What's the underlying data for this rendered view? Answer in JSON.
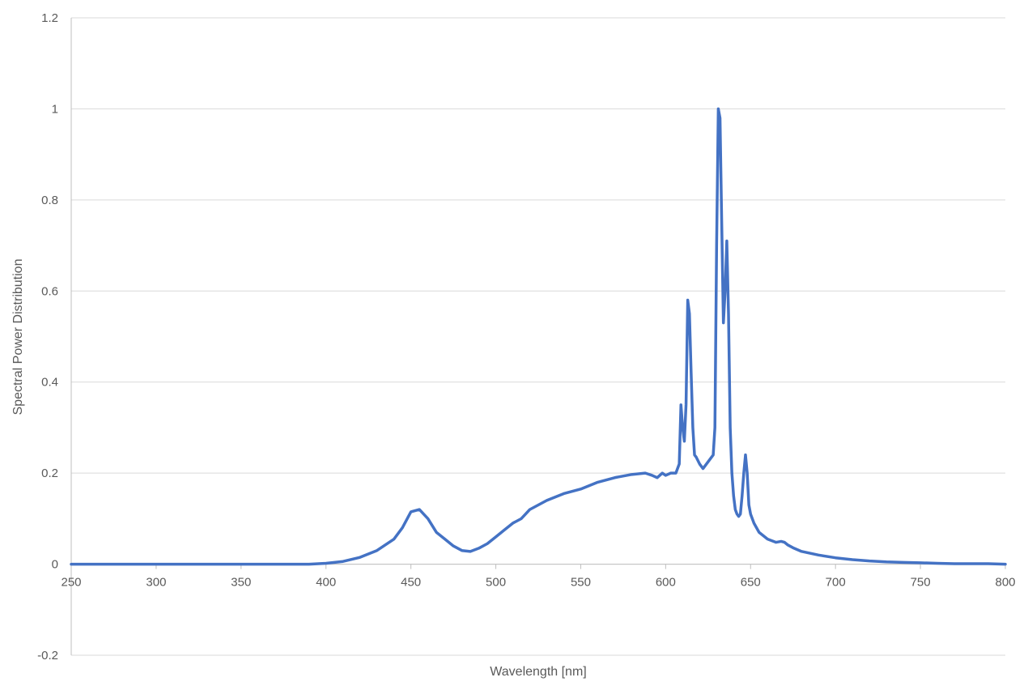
{
  "chart_data": {
    "type": "line",
    "title": "",
    "xlabel": "Wavelength [nm]",
    "ylabel": "Spectral Power Distribution",
    "xlim": [
      250,
      800
    ],
    "ylim": [
      -0.2,
      1.2
    ],
    "xticks": [
      250,
      300,
      350,
      400,
      450,
      500,
      550,
      600,
      650,
      700,
      750,
      800
    ],
    "yticks": [
      -0.2,
      0,
      0.2,
      0.4,
      0.6,
      0.8,
      1,
      1.2
    ],
    "ytick_labels": [
      "-0.2",
      "0",
      "0.2",
      "0.4",
      "0.6",
      "0.8",
      "1",
      "1.2"
    ],
    "grid": "horizontal",
    "legend": "none",
    "series_color": "#4472C4",
    "series": [
      {
        "x": [
          250,
          300,
          350,
          390,
          400,
          410,
          420,
          430,
          440,
          445,
          450,
          455,
          460,
          465,
          470,
          475,
          480,
          485,
          490,
          495,
          500,
          505,
          510,
          515,
          520,
          530,
          540,
          550,
          560,
          570,
          580,
          588,
          592,
          595,
          598,
          600,
          603,
          606,
          608,
          609,
          610,
          611,
          612,
          613,
          614,
          615,
          616,
          617,
          618,
          620,
          622,
          624,
          626,
          628,
          629,
          630,
          631,
          632,
          633,
          634,
          635,
          636,
          637,
          638,
          639,
          640,
          641,
          642,
          643,
          644,
          645,
          646,
          647,
          648,
          649,
          650,
          652,
          655,
          660,
          665,
          668,
          670,
          672,
          675,
          680,
          690,
          700,
          710,
          720,
          730,
          740,
          750,
          760,
          770,
          780,
          790,
          800
        ],
        "y": [
          0,
          0,
          0,
          0,
          0.002,
          0.006,
          0.015,
          0.03,
          0.055,
          0.08,
          0.115,
          0.12,
          0.1,
          0.07,
          0.055,
          0.04,
          0.03,
          0.028,
          0.035,
          0.045,
          0.06,
          0.075,
          0.09,
          0.1,
          0.12,
          0.14,
          0.155,
          0.165,
          0.18,
          0.19,
          0.197,
          0.2,
          0.195,
          0.19,
          0.2,
          0.195,
          0.2,
          0.2,
          0.22,
          0.35,
          0.3,
          0.27,
          0.35,
          0.58,
          0.55,
          0.42,
          0.3,
          0.24,
          0.235,
          0.22,
          0.21,
          0.22,
          0.23,
          0.24,
          0.3,
          0.7,
          1.0,
          0.98,
          0.75,
          0.53,
          0.6,
          0.71,
          0.55,
          0.3,
          0.2,
          0.15,
          0.12,
          0.11,
          0.105,
          0.11,
          0.15,
          0.2,
          0.24,
          0.2,
          0.13,
          0.11,
          0.09,
          0.07,
          0.055,
          0.048,
          0.05,
          0.048,
          0.042,
          0.036,
          0.028,
          0.02,
          0.014,
          0.01,
          0.007,
          0.005,
          0.004,
          0.003,
          0.002,
          0.001,
          0.001,
          0.001,
          0
        ]
      }
    ]
  }
}
